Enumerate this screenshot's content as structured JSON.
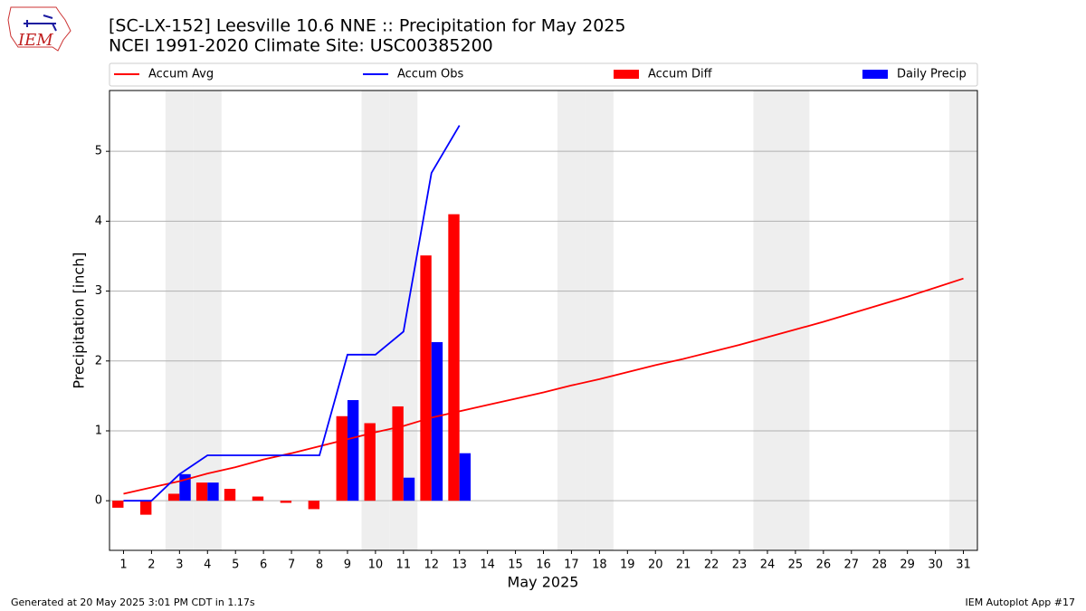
{
  "page": {
    "logo": "IEM",
    "footer_left": "Generated at 20 May 2025 3:01 PM CDT in 1.17s",
    "footer_right": "IEM Autoplot App #17"
  },
  "chart_data": {
    "type": "combo",
    "title": "[SC-LX-152] Leesville 10.6 NNE :: Precipitation for May 2025",
    "subtitle": "NCEI 1991-2020 Climate Site: USC00385200",
    "x_label": "May 2025",
    "y_label": "Precipitation [inch]",
    "x": [
      1,
      2,
      3,
      4,
      5,
      6,
      7,
      8,
      9,
      10,
      11,
      12,
      13,
      14,
      15,
      16,
      17,
      18,
      19,
      20,
      21,
      22,
      23,
      24,
      25,
      26,
      27,
      28,
      29,
      30,
      31
    ],
    "xlim": [
      0.5,
      31.5
    ],
    "xticks": [
      1,
      2,
      3,
      4,
      5,
      6,
      7,
      8,
      9,
      10,
      11,
      12,
      13,
      14,
      15,
      16,
      17,
      18,
      19,
      20,
      21,
      22,
      23,
      24,
      25,
      26,
      27,
      28,
      29,
      30,
      31
    ],
    "ylim": [
      -0.71,
      5.87
    ],
    "yticks": [
      0,
      1,
      2,
      3,
      4,
      5
    ],
    "grid": true,
    "weekends": [
      3,
      4,
      10,
      11,
      17,
      18,
      24,
      25,
      31
    ],
    "weekend_color": "#eeeeee",
    "series": [
      {
        "name": "Accum Avg",
        "type": "line",
        "color": "#ff0000",
        "values": [
          0.1,
          0.19,
          0.28,
          0.39,
          0.48,
          0.59,
          0.68,
          0.78,
          0.88,
          0.98,
          1.07,
          1.19,
          1.28,
          1.37,
          1.46,
          1.55,
          1.65,
          1.74,
          1.84,
          1.94,
          2.03,
          2.13,
          2.23,
          2.34,
          2.45,
          2.56,
          2.68,
          2.8,
          2.92,
          3.05,
          3.18
        ]
      },
      {
        "name": "Accum Obs",
        "type": "line",
        "color": "#0000ff",
        "values": [
          0,
          0,
          0.38,
          0.65,
          0.65,
          0.65,
          0.65,
          0.65,
          2.09,
          2.09,
          2.42,
          4.69,
          5.37,
          null,
          null,
          null,
          null,
          null,
          null,
          null,
          null,
          null,
          null,
          null,
          null,
          null,
          null,
          null,
          null,
          null,
          null
        ]
      },
      {
        "name": "Accum Diff",
        "type": "bar",
        "color": "#ff0000",
        "values": [
          -0.1,
          -0.2,
          0.1,
          0.26,
          0.17,
          0.06,
          -0.03,
          -0.12,
          1.21,
          1.11,
          1.35,
          3.51,
          4.1,
          null,
          null,
          null,
          null,
          null,
          null,
          null,
          null,
          null,
          null,
          null,
          null,
          null,
          null,
          null,
          null,
          null,
          null
        ]
      },
      {
        "name": "Daily Precip",
        "type": "bar",
        "color": "#0000ff",
        "values": [
          0,
          0,
          0.38,
          0.26,
          0,
          0,
          0,
          0,
          1.44,
          0,
          0.33,
          2.27,
          0.68,
          null,
          null,
          null,
          null,
          null,
          null,
          null,
          null,
          null,
          null,
          null,
          null,
          null,
          null,
          null,
          null,
          null,
          null
        ]
      }
    ]
  }
}
